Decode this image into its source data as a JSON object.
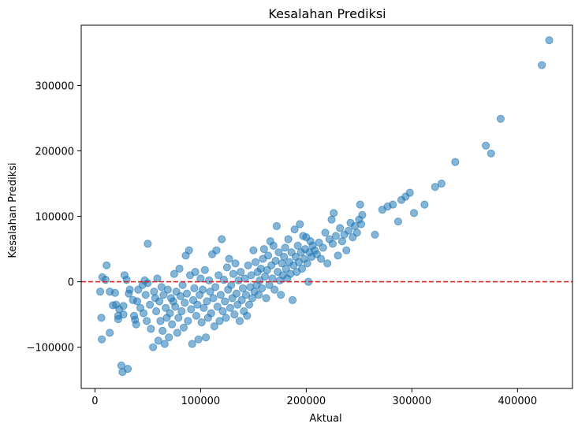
{
  "chart_data": {
    "type": "scatter",
    "title": "Kesalahan Prediksi",
    "xlabel": "Aktual",
    "ylabel": "Kesalahan Prediksi",
    "xlim": [
      -13000,
      452000
    ],
    "ylim": [
      -163000,
      392000
    ],
    "xticks": [
      0,
      100000,
      200000,
      300000,
      400000
    ],
    "yticks": [
      -100000,
      0,
      100000,
      200000,
      300000
    ],
    "xtick_labels": [
      "0",
      "100000",
      "200000",
      "300000",
      "400000"
    ],
    "ytick_labels": [
      "−100000",
      "0",
      "100000",
      "200000",
      "300000"
    ],
    "reference_line": {
      "y": 0,
      "color": "#d62728",
      "style": "dashed"
    },
    "grid": false,
    "legend": "none",
    "point_color": "#1f77b4",
    "point_alpha": 0.55,
    "points": [
      [
        5000,
        -15000
      ],
      [
        6000,
        -55000
      ],
      [
        6500,
        -88000
      ],
      [
        7000,
        7000
      ],
      [
        10000,
        3000
      ],
      [
        11000,
        25000
      ],
      [
        14000,
        -78000
      ],
      [
        14000,
        -15000
      ],
      [
        17000,
        -36000
      ],
      [
        19000,
        -17000
      ],
      [
        20000,
        -35000
      ],
      [
        22000,
        -57000
      ],
      [
        22000,
        -52000
      ],
      [
        23000,
        -42000
      ],
      [
        25000,
        -128000
      ],
      [
        26000,
        -138000
      ],
      [
        27000,
        -50000
      ],
      [
        27000,
        -37000
      ],
      [
        28000,
        10000
      ],
      [
        30000,
        3000
      ],
      [
        31000,
        -133000
      ],
      [
        32000,
        -18000
      ],
      [
        33000,
        -12000
      ],
      [
        36000,
        -28000
      ],
      [
        37000,
        -52000
      ],
      [
        38000,
        -58000
      ],
      [
        39000,
        -65000
      ],
      [
        40000,
        -30000
      ],
      [
        41000,
        -12000
      ],
      [
        43000,
        -40000
      ],
      [
        45000,
        -5000
      ],
      [
        46000,
        -48000
      ],
      [
        47000,
        2000
      ],
      [
        48000,
        -20000
      ],
      [
        49000,
        -60000
      ],
      [
        50000,
        58000
      ],
      [
        50000,
        -2000
      ],
      [
        52000,
        -35000
      ],
      [
        53000,
        -72000
      ],
      [
        55000,
        -100000
      ],
      [
        56000,
        -15000
      ],
      [
        57000,
        -25000
      ],
      [
        58000,
        -45000
      ],
      [
        59000,
        5000
      ],
      [
        60000,
        -90000
      ],
      [
        61000,
        -30000
      ],
      [
        62000,
        -60000
      ],
      [
        63000,
        -8000
      ],
      [
        64000,
        -75000
      ],
      [
        65000,
        -20000
      ],
      [
        66000,
        -95000
      ],
      [
        67000,
        -40000
      ],
      [
        68000,
        -55000
      ],
      [
        69000,
        -12000
      ],
      [
        70000,
        -85000
      ],
      [
        71000,
        -48000
      ],
      [
        72000,
        -25000
      ],
      [
        73000,
        -65000
      ],
      [
        74000,
        -30000
      ],
      [
        75000,
        12000
      ],
      [
        76000,
        -38000
      ],
      [
        77000,
        -15000
      ],
      [
        78000,
        -78000
      ],
      [
        79000,
        -55000
      ],
      [
        80000,
        20000
      ],
      [
        81000,
        -22000
      ],
      [
        82000,
        -45000
      ],
      [
        83000,
        -5000
      ],
      [
        84000,
        -70000
      ],
      [
        85000,
        -32000
      ],
      [
        86000,
        40000
      ],
      [
        87000,
        -18000
      ],
      [
        88000,
        -60000
      ],
      [
        89000,
        48000
      ],
      [
        90000,
        10000
      ],
      [
        91000,
        -42000
      ],
      [
        92000,
        -95000
      ],
      [
        93000,
        -28000
      ],
      [
        94000,
        -10000
      ],
      [
        95000,
        15000
      ],
      [
        96000,
        -52000
      ],
      [
        97000,
        -35000
      ],
      [
        98000,
        -88000
      ],
      [
        99000,
        -20000
      ],
      [
        100000,
        5000
      ],
      [
        101000,
        -62000
      ],
      [
        102000,
        -12000
      ],
      [
        103000,
        -40000
      ],
      [
        104000,
        18000
      ],
      [
        105000,
        -85000
      ],
      [
        106000,
        -30000
      ],
      [
        107000,
        -55000
      ],
      [
        108000,
        2000
      ],
      [
        109000,
        -15000
      ],
      [
        110000,
        -48000
      ],
      [
        111000,
        42000
      ],
      [
        112000,
        -25000
      ],
      [
        113000,
        -68000
      ],
      [
        114000,
        -8000
      ],
      [
        115000,
        48000
      ],
      [
        116000,
        -38000
      ],
      [
        117000,
        10000
      ],
      [
        118000,
        -60000
      ],
      [
        119000,
        -20000
      ],
      [
        120000,
        65000
      ],
      [
        121000,
        -45000
      ],
      [
        122000,
        3000
      ],
      [
        123000,
        -30000
      ],
      [
        124000,
        -55000
      ],
      [
        125000,
        22000
      ],
      [
        126000,
        -12000
      ],
      [
        127000,
        35000
      ],
      [
        128000,
        -40000
      ],
      [
        129000,
        -5000
      ],
      [
        130000,
        -25000
      ],
      [
        131000,
        12000
      ],
      [
        132000,
        -50000
      ],
      [
        133000,
        28000
      ],
      [
        134000,
        -18000
      ],
      [
        135000,
        -35000
      ],
      [
        136000,
        2000
      ],
      [
        137000,
        -60000
      ],
      [
        138000,
        15000
      ],
      [
        139000,
        -28000
      ],
      [
        140000,
        -10000
      ],
      [
        141000,
        -45000
      ],
      [
        142000,
        5000
      ],
      [
        143000,
        -20000
      ],
      [
        144000,
        -52000
      ],
      [
        145000,
        25000
      ],
      [
        146000,
        -35000
      ],
      [
        147000,
        -8000
      ],
      [
        148000,
        10000
      ],
      [
        149000,
        -25000
      ],
      [
        150000,
        48000
      ],
      [
        151000,
        -15000
      ],
      [
        152000,
        30000
      ],
      [
        153000,
        -5000
      ],
      [
        154000,
        15000
      ],
      [
        155000,
        -20000
      ],
      [
        156000,
        2000
      ],
      [
        157000,
        20000
      ],
      [
        158000,
        -10000
      ],
      [
        159000,
        35000
      ],
      [
        160000,
        50000
      ],
      [
        161000,
        8000
      ],
      [
        162000,
        -25000
      ],
      [
        163000,
        18000
      ],
      [
        164000,
        40000
      ],
      [
        165000,
        -5000
      ],
      [
        166000,
        62000
      ],
      [
        167000,
        25000
      ],
      [
        168000,
        5000
      ],
      [
        169000,
        55000
      ],
      [
        170000,
        -12000
      ],
      [
        171000,
        32000
      ],
      [
        172000,
        85000
      ],
      [
        173000,
        15000
      ],
      [
        174000,
        45000
      ],
      [
        175000,
        2000
      ],
      [
        176000,
        -20000
      ],
      [
        177000,
        28000
      ],
      [
        178000,
        10000
      ],
      [
        179000,
        38000
      ],
      [
        180000,
        52000
      ],
      [
        181000,
        20000
      ],
      [
        182000,
        5000
      ],
      [
        183000,
        65000
      ],
      [
        184000,
        30000
      ],
      [
        185000,
        12000
      ],
      [
        186000,
        45000
      ],
      [
        187000,
        -28000
      ],
      [
        188000,
        25000
      ],
      [
        189000,
        80000
      ],
      [
        190000,
        38000
      ],
      [
        191000,
        15000
      ],
      [
        192000,
        55000
      ],
      [
        193000,
        30000
      ],
      [
        194000,
        88000
      ],
      [
        195000,
        45000
      ],
      [
        196000,
        20000
      ],
      [
        197000,
        70000
      ],
      [
        198000,
        35000
      ],
      [
        199000,
        50000
      ],
      [
        200000,
        68000
      ],
      [
        201000,
        28000
      ],
      [
        202000,
        0
      ],
      [
        203000,
        45000
      ],
      [
        204000,
        62000
      ],
      [
        205000,
        38000
      ],
      [
        206000,
        55000
      ],
      [
        208000,
        48000
      ],
      [
        210000,
        42000
      ],
      [
        212000,
        60000
      ],
      [
        214000,
        35000
      ],
      [
        216000,
        52000
      ],
      [
        218000,
        75000
      ],
      [
        220000,
        28000
      ],
      [
        222000,
        65000
      ],
      [
        224000,
        95000
      ],
      [
        225000,
        58000
      ],
      [
        226000,
        105000
      ],
      [
        228000,
        70000
      ],
      [
        230000,
        40000
      ],
      [
        232000,
        82000
      ],
      [
        234000,
        62000
      ],
      [
        236000,
        72000
      ],
      [
        238000,
        48000
      ],
      [
        240000,
        78000
      ],
      [
        242000,
        90000
      ],
      [
        244000,
        68000
      ],
      [
        246000,
        85000
      ],
      [
        248000,
        75000
      ],
      [
        250000,
        95000
      ],
      [
        251000,
        118000
      ],
      [
        252000,
        88000
      ],
      [
        253000,
        102000
      ],
      [
        265000,
        72000
      ],
      [
        272000,
        110000
      ],
      [
        277000,
        115000
      ],
      [
        282000,
        118000
      ],
      [
        287000,
        92000
      ],
      [
        290000,
        125000
      ],
      [
        294000,
        130000
      ],
      [
        298000,
        136000
      ],
      [
        302000,
        105000
      ],
      [
        312000,
        118000
      ],
      [
        322000,
        145000
      ],
      [
        328000,
        150000
      ],
      [
        341000,
        183000
      ],
      [
        370000,
        208000
      ],
      [
        375000,
        196000
      ],
      [
        384000,
        249000
      ],
      [
        423000,
        331000
      ],
      [
        430000,
        369000
      ]
    ]
  }
}
